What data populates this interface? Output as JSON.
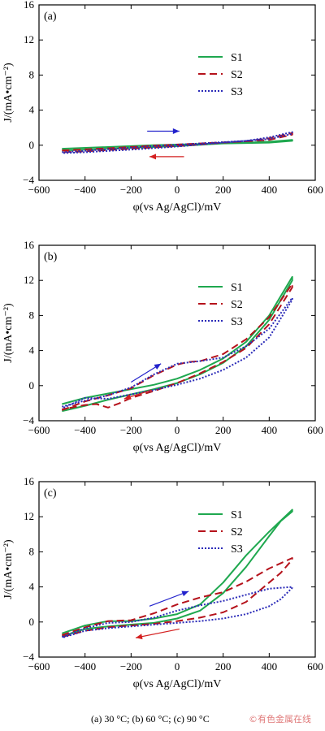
{
  "caption": "(a) 30 °C; (b) 60 °C; (c) 90 °C",
  "watermark": "©有色金属在线",
  "colors": {
    "S1": "#1fa84f",
    "S2": "#b5121b",
    "S3": "#2b2bb8",
    "arrow_forward": "#2222cc",
    "arrow_reverse": "#d42020"
  },
  "chart_data": [
    {
      "type": "line",
      "panel": "(a)",
      "xlabel": "φ(vs Ag/AgCl)/mV",
      "ylabel": "J/(mA•cm⁻²)",
      "xlim": [
        -600,
        600
      ],
      "ylim": [
        -4,
        16
      ],
      "xticks": [
        -600,
        -400,
        -200,
        0,
        200,
        400,
        600
      ],
      "yticks": [
        -4,
        0,
        4,
        8,
        12,
        16
      ],
      "legend": [
        "S1",
        "S2",
        "S3"
      ],
      "legend_position": "right",
      "series": [
        {
          "name": "S1",
          "style": "solid",
          "forward": [
            [
              -500,
              -0.4
            ],
            [
              -300,
              -0.2
            ],
            [
              -100,
              0
            ],
            [
              100,
              0.15
            ],
            [
              300,
              0.3
            ],
            [
              400,
              0.4
            ],
            [
              500,
              0.6
            ]
          ],
          "reverse": [
            [
              500,
              0.5
            ],
            [
              400,
              0.3
            ],
            [
              200,
              0.2
            ],
            [
              0,
              -0.1
            ],
            [
              -200,
              -0.3
            ],
            [
              -400,
              -0.5
            ],
            [
              -500,
              -0.6
            ]
          ]
        },
        {
          "name": "S2",
          "style": "dashed",
          "forward": [
            [
              -500,
              -0.6
            ],
            [
              -300,
              -0.35
            ],
            [
              -100,
              -0.05
            ],
            [
              100,
              0.2
            ],
            [
              300,
              0.45
            ],
            [
              400,
              0.8
            ],
            [
              500,
              1.4
            ]
          ],
          "reverse": [
            [
              500,
              1.2
            ],
            [
              400,
              0.6
            ],
            [
              200,
              0.3
            ],
            [
              0,
              -0.1
            ],
            [
              -200,
              -0.4
            ],
            [
              -400,
              -0.7
            ],
            [
              -500,
              -0.8
            ]
          ]
        },
        {
          "name": "S3",
          "style": "dotted",
          "forward": [
            [
              -500,
              -0.8
            ],
            [
              -300,
              -0.45
            ],
            [
              -100,
              -0.1
            ],
            [
              100,
              0.2
            ],
            [
              300,
              0.5
            ],
            [
              400,
              0.9
            ],
            [
              500,
              1.5
            ]
          ],
          "reverse": [
            [
              500,
              1.3
            ],
            [
              400,
              0.7
            ],
            [
              200,
              0.3
            ],
            [
              0,
              -0.15
            ],
            [
              -200,
              -0.5
            ],
            [
              -400,
              -0.8
            ],
            [
              -500,
              -0.9
            ]
          ]
        }
      ]
    },
    {
      "type": "line",
      "panel": "(b)",
      "xlabel": "φ(vs Ag/AgCl)/mV",
      "ylabel": "J/(mA•cm⁻²)",
      "xlim": [
        -600,
        600
      ],
      "ylim": [
        -4,
        16
      ],
      "xticks": [
        -600,
        -400,
        -200,
        0,
        200,
        400,
        600
      ],
      "yticks": [
        -4,
        0,
        4,
        8,
        12,
        16
      ],
      "legend": [
        "S1",
        "S2",
        "S3"
      ],
      "legend_position": "right",
      "series": [
        {
          "name": "S1",
          "style": "solid",
          "forward": [
            [
              -500,
              -2.1
            ],
            [
              -400,
              -1.4
            ],
            [
              -300,
              -0.9
            ],
            [
              -200,
              -0.4
            ],
            [
              -100,
              0.1
            ],
            [
              0,
              0.8
            ],
            [
              100,
              1.8
            ],
            [
              200,
              3.1
            ],
            [
              300,
              5.0
            ],
            [
              400,
              8.0
            ],
            [
              500,
              12.4
            ]
          ],
          "reverse": [
            [
              500,
              12.0
            ],
            [
              400,
              7.5
            ],
            [
              300,
              4.5
            ],
            [
              200,
              2.6
            ],
            [
              100,
              1.3
            ],
            [
              0,
              0.3
            ],
            [
              -100,
              -0.4
            ],
            [
              -200,
              -1.0
            ],
            [
              -300,
              -1.6
            ],
            [
              -400,
              -2.3
            ],
            [
              -500,
              -2.9
            ]
          ]
        },
        {
          "name": "S2",
          "style": "dashed",
          "forward": [
            [
              -500,
              -2.8
            ],
            [
              -400,
              -1.8
            ],
            [
              -300,
              -1.1
            ],
            [
              -200,
              -0.3
            ],
            [
              -100,
              1.2
            ],
            [
              0,
              2.4
            ],
            [
              50,
              2.7
            ],
            [
              100,
              2.8
            ],
            [
              200,
              3.6
            ],
            [
              300,
              5.3
            ],
            [
              400,
              7.8
            ],
            [
              500,
              11.6
            ]
          ],
          "reverse": [
            [
              500,
              11.2
            ],
            [
              400,
              7.0
            ],
            [
              300,
              4.3
            ],
            [
              200,
              2.7
            ],
            [
              100,
              1.4
            ],
            [
              0,
              0.3
            ],
            [
              -100,
              -0.6
            ],
            [
              -200,
              -1.4
            ],
            [
              -250,
              -2.0
            ],
            [
              -300,
              -2.5
            ],
            [
              -350,
              -2.1
            ],
            [
              -400,
              -2.2
            ],
            [
              -500,
              -2.7
            ]
          ]
        },
        {
          "name": "S3",
          "style": "dotted",
          "forward": [
            [
              -500,
              -2.4
            ],
            [
              -400,
              -1.7
            ],
            [
              -300,
              -1.1
            ],
            [
              -200,
              -0.2
            ],
            [
              -100,
              1.3
            ],
            [
              0,
              2.5
            ],
            [
              100,
              2.8
            ],
            [
              200,
              3.2
            ],
            [
              300,
              4.5
            ],
            [
              400,
              6.5
            ],
            [
              500,
              10.0
            ]
          ],
          "reverse": [
            [
              500,
              9.8
            ],
            [
              400,
              5.5
            ],
            [
              300,
              3.2
            ],
            [
              200,
              1.8
            ],
            [
              100,
              0.8
            ],
            [
              0,
              0.1
            ],
            [
              -100,
              -0.5
            ],
            [
              -200,
              -1.0
            ],
            [
              -300,
              -1.5
            ],
            [
              -400,
              -1.4
            ],
            [
              -500,
              -2.6
            ]
          ]
        }
      ]
    },
    {
      "type": "line",
      "panel": "(c)",
      "xlabel": "φ(vs Ag/AgCl)/mV",
      "ylabel": "J/(mA•cm⁻²)",
      "xlim": [
        -600,
        600
      ],
      "ylim": [
        -4,
        16
      ],
      "xticks": [
        -600,
        -400,
        -200,
        0,
        200,
        400,
        600
      ],
      "yticks": [
        -4,
        0,
        4,
        8,
        12,
        16
      ],
      "legend": [
        "S1",
        "S2",
        "S3"
      ],
      "legend_position": "right",
      "series": [
        {
          "name": "S1",
          "style": "solid",
          "forward": [
            [
              -500,
              -1.3
            ],
            [
              -400,
              -0.4
            ],
            [
              -300,
              0.1
            ],
            [
              -200,
              0.1
            ],
            [
              -100,
              0.4
            ],
            [
              0,
              0.9
            ],
            [
              100,
              2.0
            ],
            [
              200,
              4.5
            ],
            [
              300,
              7.6
            ],
            [
              400,
              10.3
            ],
            [
              500,
              12.8
            ]
          ],
          "reverse": [
            [
              500,
              12.6
            ],
            [
              450,
              11.5
            ],
            [
              400,
              9.8
            ],
            [
              300,
              6.3
            ],
            [
              200,
              3.3
            ],
            [
              100,
              1.3
            ],
            [
              0,
              0.4
            ],
            [
              -100,
              -0.1
            ],
            [
              -200,
              -0.3
            ],
            [
              -300,
              -0.5
            ],
            [
              -400,
              -0.8
            ],
            [
              -500,
              -1.6
            ]
          ]
        },
        {
          "name": "S2",
          "style": "dashed",
          "forward": [
            [
              -500,
              -1.5
            ],
            [
              -400,
              -0.6
            ],
            [
              -300,
              0.1
            ],
            [
              -200,
              0.2
            ],
            [
              -100,
              1.0
            ],
            [
              0,
              2.0
            ],
            [
              100,
              2.8
            ],
            [
              200,
              3.4
            ],
            [
              300,
              4.6
            ],
            [
              400,
              6.1
            ],
            [
              500,
              7.3
            ]
          ],
          "reverse": [
            [
              500,
              7.1
            ],
            [
              450,
              5.6
            ],
            [
              400,
              4.5
            ],
            [
              300,
              2.3
            ],
            [
              200,
              1.1
            ],
            [
              100,
              0.5
            ],
            [
              0,
              0.1
            ],
            [
              -100,
              -0.2
            ],
            [
              -200,
              -0.4
            ],
            [
              -300,
              -0.6
            ],
            [
              -400,
              -1.0
            ],
            [
              -500,
              -1.7
            ]
          ]
        },
        {
          "name": "S3",
          "style": "dotted",
          "forward": [
            [
              -500,
              -1.7
            ],
            [
              -400,
              -0.7
            ],
            [
              -300,
              -0.1
            ],
            [
              -200,
              0.0
            ],
            [
              -100,
              0.5
            ],
            [
              0,
              1.3
            ],
            [
              100,
              1.9
            ],
            [
              200,
              2.4
            ],
            [
              300,
              3.1
            ],
            [
              400,
              3.8
            ],
            [
              500,
              4.0
            ]
          ],
          "reverse": [
            [
              500,
              3.9
            ],
            [
              450,
              2.6
            ],
            [
              400,
              1.8
            ],
            [
              300,
              0.9
            ],
            [
              200,
              0.4
            ],
            [
              100,
              0.1
            ],
            [
              0,
              -0.1
            ],
            [
              -100,
              -0.3
            ],
            [
              -200,
              -0.5
            ],
            [
              -300,
              -0.7
            ],
            [
              -400,
              -1.0
            ],
            [
              -500,
              -1.8
            ]
          ]
        }
      ]
    }
  ]
}
